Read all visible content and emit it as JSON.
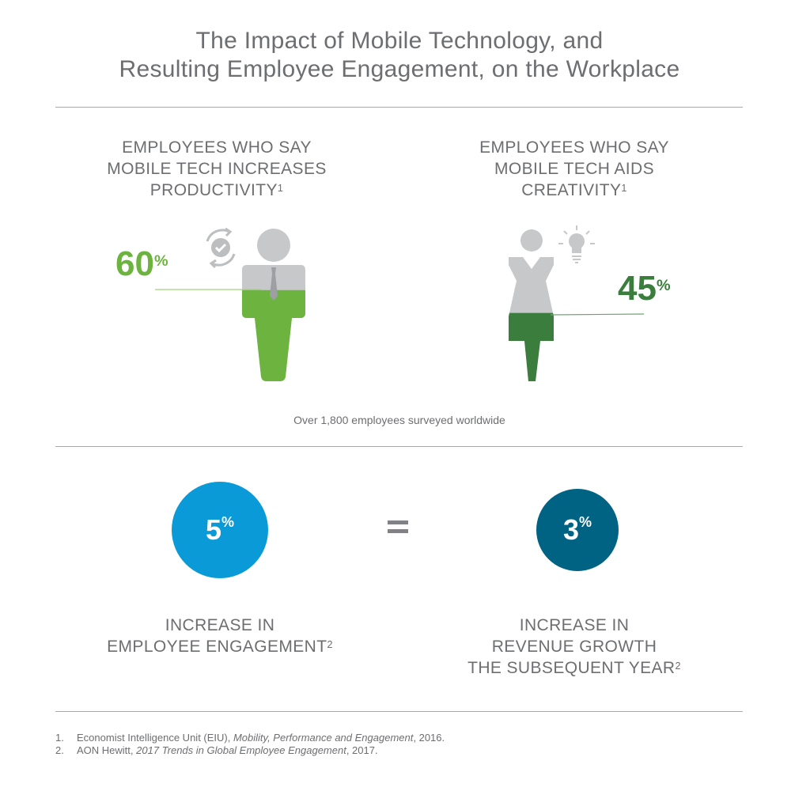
{
  "title": [
    "The Impact of Mobile Technology, and",
    "Resulting Employee Engagement, on the Workplace"
  ],
  "stat_productivity": {
    "heading": [
      "EMPLOYEES WHO SAY",
      "MOBILE TECH INCREASES",
      "PRODUCTIVITY"
    ],
    "footnote_ref": "1",
    "value": "60",
    "unit": "%",
    "fill_percent": 60,
    "icon": "refresh-check-icon",
    "color": "#6db33f"
  },
  "stat_creativity": {
    "heading": [
      "EMPLOYEES WHO SAY",
      "MOBILE TECH AIDS",
      "CREATIVITY"
    ],
    "footnote_ref": "1",
    "value": "45",
    "unit": "%",
    "fill_percent": 45,
    "icon": "lightbulb-icon",
    "color": "#3a7d3c"
  },
  "survey_note": "Over 1,800 employees surveyed worldwide",
  "engagement": {
    "value": "5",
    "unit": "%",
    "color": "#0a9ad7",
    "label": [
      "INCREASE IN",
      "EMPLOYEE ENGAGEMENT"
    ],
    "footnote_ref": "2"
  },
  "equals": "=",
  "revenue": {
    "value": "3",
    "unit": "%",
    "color": "#006384",
    "label": [
      "INCREASE IN",
      "REVENUE GROWTH",
      "THE SUBSEQUENT YEAR"
    ],
    "footnote_ref": "2"
  },
  "footnotes": [
    {
      "num": "1.",
      "pre": "Economist Intelligence Unit (EIU), ",
      "italic": "Mobility, Performance and Engagement",
      "post": ", 2016."
    },
    {
      "num": "2.",
      "pre": "AON Hewitt, ",
      "italic": "2017 Trends in Global Employee Engagement",
      "post": ", 2017."
    }
  ]
}
